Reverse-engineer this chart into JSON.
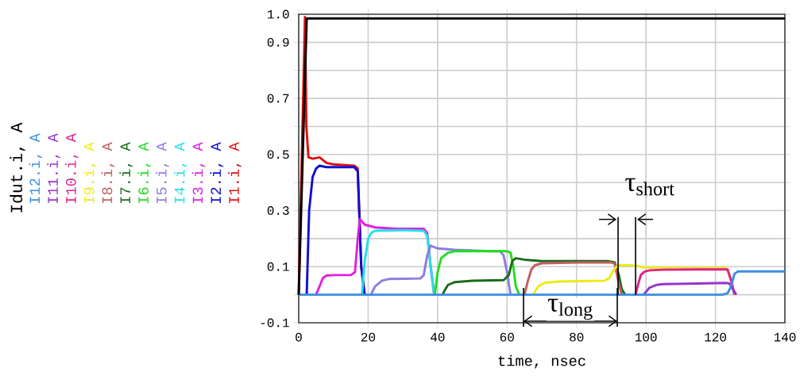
{
  "chart_data": {
    "type": "line",
    "xlabel": "time, nsec",
    "xlim": [
      0,
      140
    ],
    "xticks": [
      0,
      20,
      40,
      60,
      80,
      100,
      120,
      140
    ],
    "ylim": [
      -0.1,
      1.0
    ],
    "yticks": [
      {
        "value": -0.1,
        "label": "-0.1"
      },
      {
        "value": 0,
        "label": null
      },
      {
        "value": 0.1,
        "label": "0.1"
      },
      {
        "value": 0.2,
        "label": null
      },
      {
        "value": 0.3,
        "label": "0.3"
      },
      {
        "value": 0.4,
        "label": null
      },
      {
        "value": 0.5,
        "label": "0.5"
      },
      {
        "value": 0.6,
        "label": null
      },
      {
        "value": 0.7,
        "label": "0.7"
      },
      {
        "value": 0.8,
        "label": null
      },
      {
        "value": 0.9,
        "label": "0.9"
      },
      {
        "value": 1.0,
        "label": "1.0"
      }
    ],
    "grid": true,
    "legend": "left",
    "line_style": "solid",
    "series": [
      {
        "name": "Idut.i, A",
        "color": "#000000",
        "x": [
          0,
          2.3,
          140
        ],
        "values": [
          0,
          0.985,
          0.985
        ]
      },
      {
        "name": "I12.i, A",
        "color": "#3a8ee6",
        "x": [
          0,
          122,
          123.5,
          124.5,
          125.5,
          126.5,
          140
        ],
        "values": [
          0,
          0,
          0.005,
          0.03,
          0.075,
          0.083,
          0.083
        ]
      },
      {
        "name": "I11.i, A",
        "color": "#9933cc",
        "x": [
          99.3,
          100,
          101,
          103,
          105,
          115,
          123,
          124,
          125,
          126
        ],
        "values": [
          0,
          0.01,
          0.025,
          0.035,
          0.038,
          0.04,
          0.042,
          0.04,
          0.02,
          0
        ]
      },
      {
        "name": "I10.i, A",
        "color": "#e0208a",
        "x": [
          97,
          97.8,
          98.5,
          99.5,
          101,
          105,
          115,
          123.5,
          124.5,
          125.5
        ],
        "values": [
          0,
          0.04,
          0.07,
          0.082,
          0.087,
          0.089,
          0.09,
          0.09,
          0.05,
          0
        ]
      },
      {
        "name": "I9.i, A",
        "color": "#eeea1a",
        "x": [
          67.3,
          68,
          69,
          71,
          75,
          88,
          89.5,
          90.5,
          91.5,
          92.5,
          95,
          97,
          99,
          105,
          115,
          123,
          124.5,
          125.5
        ],
        "values": [
          0,
          0.01,
          0.03,
          0.043,
          0.047,
          0.05,
          0.06,
          0.085,
          0.1,
          0.106,
          0.105,
          0.104,
          0.098,
          0.096,
          0.095,
          0.095,
          0.06,
          0
        ]
      },
      {
        "name": "I8.i, A",
        "color": "#c06060",
        "x": [
          65,
          66,
          67,
          68,
          70,
          80,
          90,
          91,
          92,
          93
        ],
        "values": [
          0,
          0.05,
          0.09,
          0.105,
          0.112,
          0.115,
          0.115,
          0.11,
          0.05,
          0
        ]
      },
      {
        "name": "I7.i, A",
        "color": "#1a6b1a",
        "x": [
          41.4,
          42,
          43,
          45,
          50,
          59,
          60.5,
          61.5,
          62.5,
          65,
          70,
          80,
          89,
          91,
          92.2,
          93,
          94
        ],
        "values": [
          0,
          0.015,
          0.035,
          0.045,
          0.05,
          0.052,
          0.07,
          0.12,
          0.13,
          0.125,
          0.12,
          0.12,
          0.12,
          0.115,
          0.07,
          0.02,
          0
        ]
      },
      {
        "name": "I6.i, A",
        "color": "#22dd22",
        "x": [
          39.2,
          40,
          41,
          43,
          45,
          50,
          60,
          61,
          61.8,
          62.5,
          63.5
        ],
        "values": [
          0,
          0.08,
          0.13,
          0.15,
          0.155,
          0.155,
          0.155,
          0.15,
          0.1,
          0.03,
          0
        ]
      },
      {
        "name": "I5.i, A",
        "color": "#8a7ee0",
        "x": [
          20.8,
          22,
          24,
          26,
          35,
          36,
          37,
          38,
          40,
          45,
          55,
          58,
          59,
          60,
          61
        ],
        "values": [
          0,
          0.03,
          0.05,
          0.056,
          0.058,
          0.07,
          0.14,
          0.175,
          0.165,
          0.16,
          0.155,
          0.155,
          0.14,
          0.08,
          0
        ]
      },
      {
        "name": "I4.i, A",
        "color": "#22e0e8",
        "x": [
          18.2,
          19,
          20,
          21,
          22,
          30,
          36,
          37,
          38,
          39
        ],
        "values": [
          0,
          0.12,
          0.2,
          0.222,
          0.228,
          0.23,
          0.228,
          0.21,
          0.1,
          0
        ]
      },
      {
        "name": "I3.i, A",
        "color": "#e020e0",
        "x": [
          5,
          6,
          7,
          8,
          10,
          15,
          16.2,
          17,
          17.6,
          19,
          22,
          28,
          36,
          37,
          38,
          39
        ],
        "values": [
          0,
          0.03,
          0.06,
          0.068,
          0.07,
          0.07,
          0.08,
          0.2,
          0.27,
          0.25,
          0.24,
          0.235,
          0.235,
          0.22,
          0.1,
          0
        ]
      },
      {
        "name": "I2.i, A",
        "color": "#1010d0",
        "x": [
          2.3,
          3,
          4,
          5,
          6,
          8,
          16,
          17,
          18,
          19
        ],
        "values": [
          0,
          0.3,
          0.42,
          0.45,
          0.46,
          0.455,
          0.455,
          0.44,
          0.1,
          0
        ]
      },
      {
        "name": "I1.i, A",
        "color": "#dd1010",
        "x": [
          0,
          1.8,
          2.2,
          2.8,
          4,
          6,
          8,
          10,
          16,
          17,
          18,
          19
        ],
        "values": [
          0,
          0.99,
          0.6,
          0.49,
          0.485,
          0.49,
          0.47,
          0.465,
          0.46,
          0.45,
          0.1,
          0
        ]
      }
    ],
    "annotations": [
      "τ$_{long}$",
      {
        "text": "τ$_{short}$",
        "x": 97,
        "y": 0
      }
    ]
  }
}
